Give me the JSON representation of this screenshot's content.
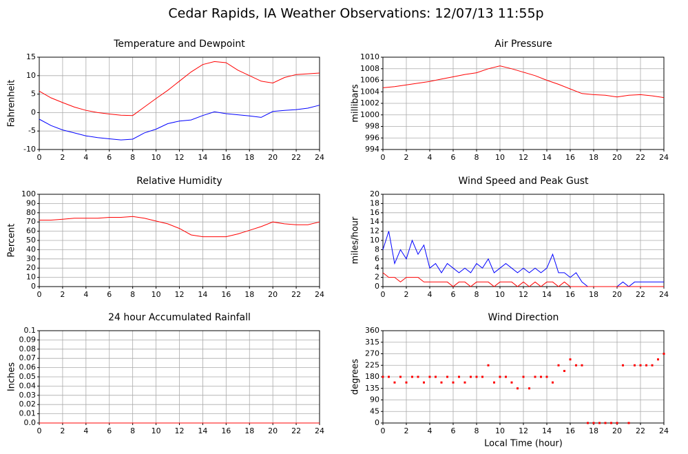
{
  "title": "Cedar Rapids, IA Weather Observations: 12/07/13 11:55p",
  "chart_data": [
    {
      "type": "line",
      "title": "Temperature and Dewpoint",
      "y_label": "Fahrenheit",
      "x": [
        0,
        1,
        2,
        3,
        4,
        5,
        6,
        7,
        8,
        9,
        10,
        11,
        12,
        13,
        14,
        15,
        16,
        17,
        18,
        19,
        20,
        21,
        22,
        23,
        24
      ],
      "series": [
        {
          "color": "#ff0000",
          "values": [
            5.8,
            4,
            2.7,
            1.5,
            0.6,
            0,
            -0.4,
            -0.7,
            -0.8,
            1.5,
            3.8,
            6,
            8.5,
            11,
            13,
            13.8,
            13.5,
            11.5,
            10,
            8.5,
            8,
            9.5,
            10.3,
            10.5,
            10.7
          ]
        },
        {
          "color": "#0000ff",
          "values": [
            -1.8,
            -3.5,
            -4.7,
            -5.5,
            -6.3,
            -6.8,
            -7.1,
            -7.4,
            -7.2,
            -5.5,
            -4.5,
            -3,
            -2.3,
            -2,
            -0.8,
            0.2,
            -0.3,
            -0.6,
            -0.9,
            -1.3,
            0.3,
            0.6,
            0.8,
            1.2,
            2
          ]
        }
      ],
      "xlim": [
        0,
        24
      ],
      "xticks": [
        0,
        2,
        4,
        6,
        8,
        10,
        12,
        14,
        16,
        18,
        20,
        22,
        24
      ],
      "ylim": [
        -10,
        15
      ],
      "yticks": [
        -10,
        -5,
        0,
        5,
        10,
        15
      ],
      "grid": true
    },
    {
      "type": "line",
      "title": "Air Pressure",
      "y_label": "millibars",
      "x": [
        0,
        1,
        2,
        3,
        4,
        5,
        6,
        7,
        8,
        9,
        10,
        11,
        12,
        13,
        14,
        15,
        16,
        17,
        18,
        19,
        20,
        21,
        22,
        23,
        24
      ],
      "series": [
        {
          "color": "#ff0000",
          "values": [
            1004.7,
            1004.9,
            1005.2,
            1005.5,
            1005.8,
            1006.2,
            1006.6,
            1007,
            1007.3,
            1008,
            1008.5,
            1008,
            1007.4,
            1006.8,
            1006,
            1005.3,
            1004.5,
            1003.7,
            1003.5,
            1003.4,
            1003.1,
            1003.4,
            1003.5,
            1003.3,
            1003
          ]
        }
      ],
      "xlim": [
        0,
        24
      ],
      "xticks": [
        0,
        2,
        4,
        6,
        8,
        10,
        12,
        14,
        16,
        18,
        20,
        22,
        24
      ],
      "ylim": [
        994,
        1010
      ],
      "yticks": [
        994,
        996,
        998,
        1000,
        1002,
        1004,
        1006,
        1008,
        1010
      ],
      "grid": true
    },
    {
      "type": "line",
      "title": "Relative Humidity",
      "y_label": "Percent",
      "x": [
        0,
        1,
        2,
        3,
        4,
        5,
        6,
        7,
        8,
        9,
        10,
        11,
        12,
        13,
        14,
        15,
        16,
        17,
        18,
        19,
        20,
        21,
        22,
        23,
        24
      ],
      "series": [
        {
          "color": "#ff0000",
          "values": [
            72,
            72,
            73,
            74,
            74,
            74,
            75,
            75,
            76,
            74,
            71,
            68,
            63,
            56,
            54,
            54,
            54,
            57,
            61,
            65,
            70,
            68,
            67,
            67,
            70
          ]
        }
      ],
      "xlim": [
        0,
        24
      ],
      "xticks": [
        0,
        2,
        4,
        6,
        8,
        10,
        12,
        14,
        16,
        18,
        20,
        22,
        24
      ],
      "ylim": [
        0,
        100
      ],
      "yticks": [
        0,
        10,
        20,
        30,
        40,
        50,
        60,
        70,
        80,
        90,
        100
      ],
      "grid": true
    },
    {
      "type": "line",
      "title": "Wind Speed and Peak Gust",
      "y_label": "miles/hour",
      "x": [
        0,
        0.5,
        1,
        1.5,
        2,
        2.5,
        3,
        3.5,
        4,
        4.5,
        5,
        5.5,
        6,
        6.5,
        7,
        7.5,
        8,
        8.5,
        9,
        9.5,
        10,
        10.5,
        11,
        11.5,
        12,
        12.5,
        13,
        13.5,
        14,
        14.5,
        15,
        15.5,
        16,
        16.5,
        17,
        17.5,
        18,
        18.5,
        19,
        19.5,
        20,
        20.5,
        21,
        21.5,
        22,
        22.5,
        23,
        23.5,
        24
      ],
      "series": [
        {
          "color": "#0000ff",
          "values": [
            8,
            12,
            5,
            8,
            6,
            10,
            7,
            9,
            4,
            5,
            3,
            5,
            4,
            3,
            4,
            3,
            5,
            4,
            6,
            3,
            4,
            5,
            4,
            3,
            4,
            3,
            4,
            3,
            4,
            7,
            3,
            3,
            2,
            3,
            1,
            0,
            0,
            0,
            0,
            0,
            0,
            1,
            0,
            1,
            1,
            1,
            1,
            1,
            1
          ]
        },
        {
          "color": "#ff0000",
          "values": [
            3,
            2,
            2,
            1,
            2,
            2,
            2,
            1,
            1,
            1,
            1,
            1,
            0,
            1,
            1,
            0,
            1,
            1,
            1,
            0,
            1,
            1,
            1,
            0,
            1,
            0,
            1,
            0,
            1,
            1,
            0,
            1,
            0,
            0,
            0,
            0,
            0,
            0,
            0,
            0,
            0,
            0,
            0,
            0,
            0,
            0,
            0,
            0,
            0
          ]
        }
      ],
      "xlim": [
        0,
        24
      ],
      "xticks": [
        0,
        2,
        4,
        6,
        8,
        10,
        12,
        14,
        16,
        18,
        20,
        22,
        24
      ],
      "ylim": [
        0,
        20
      ],
      "yticks": [
        0,
        2,
        4,
        6,
        8,
        10,
        12,
        14,
        16,
        18,
        20
      ],
      "grid": true
    },
    {
      "type": "line",
      "title": "24 hour Accumulated Rainfall",
      "y_label": "Inches",
      "x": [
        0,
        24
      ],
      "series": [
        {
          "color": "#ff0000",
          "values": [
            0,
            0
          ]
        }
      ],
      "xlim": [
        0,
        24
      ],
      "xticks": [
        0,
        2,
        4,
        6,
        8,
        10,
        12,
        14,
        16,
        18,
        20,
        22,
        24
      ],
      "ylim": [
        0,
        0.1
      ],
      "yticks": [
        {
          "value": 0,
          "label": "0.0"
        },
        0.01,
        0.02,
        0.03,
        0.04,
        0.05,
        0.06,
        0.07,
        0.08,
        0.09,
        0.1
      ],
      "grid": true
    },
    {
      "type": "scatter",
      "title": "Wind Direction",
      "y_label": "degrees",
      "x_label": "Local Time (hour)",
      "x": [
        0,
        0.5,
        1,
        1.5,
        2,
        2.5,
        3,
        3.5,
        4,
        4.5,
        5,
        5.5,
        6,
        6.5,
        7,
        7.5,
        8,
        8.5,
        9,
        9.5,
        10,
        10.5,
        11,
        11.5,
        12,
        12.5,
        13,
        13.5,
        14,
        14.5,
        15,
        15.5,
        16,
        16.5,
        17,
        17.5,
        18,
        18.5,
        19,
        19.5,
        20,
        20.5,
        21,
        21.5,
        22,
        22.5,
        23,
        23.5,
        24
      ],
      "series": [
        {
          "color": "#ff0000",
          "values": [
            180,
            180,
            158,
            180,
            158,
            180,
            180,
            158,
            180,
            180,
            158,
            180,
            158,
            180,
            158,
            180,
            180,
            180,
            225,
            158,
            180,
            180,
            158,
            135,
            180,
            135,
            180,
            180,
            180,
            158,
            225,
            203,
            248,
            225,
            225,
            0,
            0,
            0,
            0,
            0,
            0,
            225,
            0,
            225,
            225,
            225,
            225,
            248,
            270
          ]
        }
      ],
      "xlim": [
        0,
        24
      ],
      "xticks": [
        0,
        2,
        4,
        6,
        8,
        10,
        12,
        14,
        16,
        18,
        20,
        22,
        24
      ],
      "ylim": [
        0,
        360
      ],
      "yticks": [
        0,
        45,
        90,
        135,
        180,
        225,
        270,
        315,
        360
      ],
      "grid": true
    }
  ]
}
